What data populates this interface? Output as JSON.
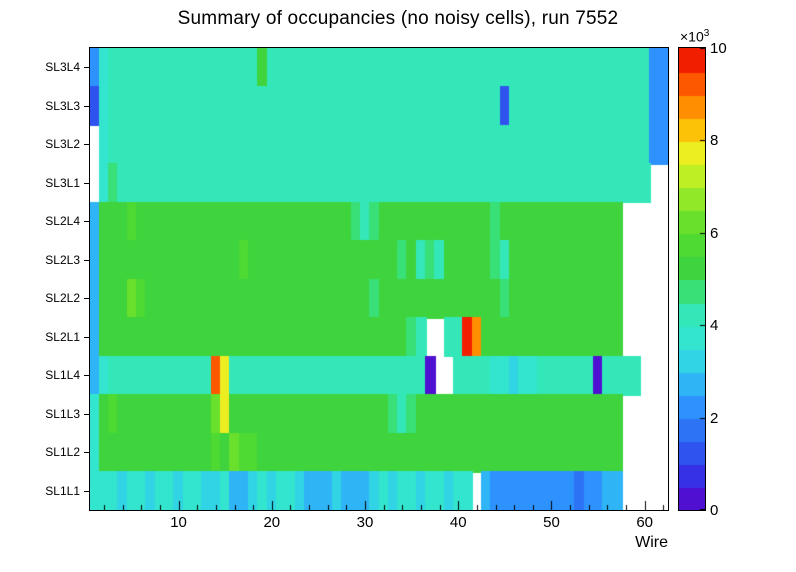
{
  "title": "Summary of occupancies (no noisy cells), run 7552",
  "chart_data": {
    "type": "heatmap",
    "title": "Summary of occupancies (no noisy cells), run 7552",
    "xlabel": "Wire",
    "x_range": [
      1,
      62
    ],
    "x_major_ticks": [
      10,
      20,
      30,
      40,
      50,
      60
    ],
    "x_minor_tick_step": 2,
    "y_categories_top_to_bottom": [
      "SL3L4",
      "SL3L3",
      "SL3L2",
      "SL3L1",
      "SL2L4",
      "SL2L3",
      "SL2L2",
      "SL2L1",
      "SL1L4",
      "SL1L3",
      "SL1L2",
      "SL1L1"
    ],
    "z_axis": {
      "min": 0,
      "max": 10,
      "ticks": [
        0,
        2,
        4,
        6,
        8,
        10
      ],
      "exp_base": "×10",
      "exp_sup": "3",
      "unit_scale": 1000
    },
    "empty_cell_color": "#ffffff",
    "rows_top_to_bottom": [
      {
        "layer": "SL3L4",
        "values": [
          2.0,
          3.6,
          4.4,
          4.4,
          4.0,
          4.0,
          4.2,
          4.0,
          4.0,
          4.2,
          4.0,
          4.0,
          4.2,
          4.0,
          4.0,
          4.4,
          4.0,
          4.0,
          5.0,
          4.2,
          4.0,
          4.0,
          4.2,
          4.0,
          4.0,
          4.0,
          4.2,
          4.0,
          4.0,
          4.4,
          4.0,
          4.0,
          4.0,
          4.2,
          4.0,
          4.0,
          4.2,
          4.0,
          4.0,
          4.0,
          4.2,
          4.0,
          4.4,
          4.2,
          4.0,
          4.0,
          4.0,
          4.2,
          4.0,
          4.0,
          4.2,
          4.0,
          4.0,
          4.4,
          4.0,
          4.2,
          4.0,
          4.0,
          4.2,
          4.0,
          2.4,
          2.2
        ]
      },
      {
        "layer": "SL3L3",
        "values": [
          1.2,
          3.8,
          4.0,
          4.2,
          4.0,
          4.0,
          4.0,
          4.2,
          4.0,
          4.0,
          4.2,
          4.0,
          4.0,
          4.0,
          4.2,
          4.0,
          4.0,
          4.2,
          4.0,
          4.0,
          4.0,
          4.2,
          4.0,
          4.0,
          4.2,
          4.0,
          4.0,
          4.0,
          4.2,
          4.0,
          4.0,
          4.2,
          4.0,
          4.0,
          4.0,
          4.2,
          4.0,
          4.0,
          4.2,
          4.0,
          4.0,
          4.0,
          4.2,
          4.0,
          1.0,
          4.0,
          4.2,
          4.0,
          4.0,
          4.2,
          4.0,
          4.0,
          4.0,
          4.2,
          4.0,
          4.0,
          4.2,
          4.0,
          4.0,
          4.0,
          2.3,
          2.2
        ]
      },
      {
        "layer": "SL3L2",
        "values": [
          null,
          3.6,
          4.0,
          4.0,
          4.2,
          4.0,
          4.0,
          4.2,
          4.0,
          4.0,
          4.0,
          4.2,
          4.0,
          4.0,
          4.2,
          4.0,
          4.0,
          4.0,
          4.2,
          4.0,
          4.0,
          4.2,
          4.0,
          4.0,
          4.0,
          4.2,
          4.0,
          4.0,
          4.2,
          4.0,
          4.0,
          4.0,
          4.2,
          4.0,
          4.0,
          4.2,
          4.0,
          4.0,
          4.0,
          4.2,
          4.0,
          4.0,
          4.2,
          4.0,
          4.0,
          4.0,
          4.2,
          4.0,
          4.0,
          4.2,
          4.0,
          4.0,
          4.0,
          4.2,
          4.0,
          4.0,
          4.2,
          4.0,
          4.0,
          4.0,
          2.4,
          2.2
        ]
      },
      {
        "layer": "SL3L1",
        "values": [
          null,
          3.8,
          4.6,
          4.2,
          4.0,
          4.2,
          4.0,
          4.0,
          4.2,
          4.0,
          4.0,
          4.2,
          4.0,
          4.0,
          4.0,
          4.2,
          4.0,
          4.0,
          4.4,
          4.0,
          4.0,
          4.2,
          4.0,
          4.0,
          4.2,
          4.0,
          4.0,
          4.0,
          4.2,
          4.0,
          4.0,
          4.2,
          4.0,
          4.0,
          4.0,
          4.2,
          4.0,
          4.0,
          4.2,
          4.0,
          4.0,
          4.0,
          4.2,
          4.0,
          4.0,
          4.2,
          4.0,
          4.0,
          4.0,
          4.2,
          4.0,
          4.0,
          4.2,
          4.0,
          4.0,
          4.0,
          4.2,
          4.0,
          4.0,
          4.0,
          null,
          null
        ]
      },
      {
        "layer": "SL2L4",
        "values": [
          2.8,
          5.0,
          5.2,
          5.0,
          5.6,
          5.4,
          5.0,
          5.2,
          5.0,
          5.0,
          5.4,
          5.0,
          5.2,
          5.0,
          5.0,
          5.2,
          5.0,
          5.4,
          5.0,
          5.0,
          5.2,
          5.0,
          5.0,
          5.4,
          5.0,
          5.2,
          5.0,
          5.0,
          4.6,
          4.4,
          4.6,
          5.0,
          5.2,
          5.0,
          5.0,
          5.2,
          5.0,
          5.0,
          5.4,
          5.0,
          5.0,
          5.2,
          5.0,
          4.6,
          5.0,
          5.2,
          5.0,
          5.0,
          5.2,
          5.0,
          5.4,
          5.0,
          5.0,
          5.2,
          5.0,
          5.0,
          5.2,
          null,
          null,
          null,
          null,
          null
        ]
      },
      {
        "layer": "SL2L3",
        "values": [
          2.8,
          5.0,
          5.2,
          5.4,
          5.0,
          5.0,
          5.2,
          5.0,
          5.4,
          5.0,
          5.0,
          5.2,
          5.0,
          5.0,
          5.2,
          5.0,
          5.6,
          5.0,
          5.0,
          5.2,
          5.0,
          5.0,
          5.2,
          5.0,
          5.0,
          5.4,
          5.0,
          5.2,
          5.0,
          5.0,
          5.2,
          5.0,
          5.0,
          4.6,
          5.0,
          4.4,
          4.6,
          4.4,
          5.0,
          5.2,
          5.0,
          5.0,
          5.2,
          4.6,
          4.4,
          5.0,
          5.2,
          5.0,
          5.0,
          5.2,
          5.0,
          5.0,
          5.4,
          5.0,
          5.0,
          5.2,
          5.0,
          null,
          null,
          null,
          null,
          null
        ]
      },
      {
        "layer": "SL2L2",
        "values": [
          2.8,
          5.0,
          5.4,
          5.0,
          6.0,
          5.6,
          5.0,
          5.2,
          5.0,
          5.0,
          5.2,
          5.0,
          5.0,
          5.4,
          5.0,
          5.2,
          5.0,
          5.0,
          5.2,
          5.0,
          5.0,
          5.4,
          5.0,
          5.0,
          5.2,
          5.0,
          5.0,
          5.2,
          5.0,
          5.0,
          4.6,
          5.0,
          5.2,
          5.0,
          5.0,
          5.2,
          5.0,
          5.0,
          5.4,
          5.0,
          5.0,
          5.2,
          5.0,
          5.0,
          4.6,
          5.0,
          5.2,
          5.0,
          5.0,
          5.2,
          5.0,
          5.4,
          5.0,
          5.0,
          5.2,
          5.0,
          5.0,
          null,
          null,
          null,
          null,
          null
        ]
      },
      {
        "layer": "SL2L1",
        "values": [
          2.8,
          5.0,
          5.2,
          5.0,
          5.0,
          5.4,
          5.0,
          5.2,
          5.0,
          5.0,
          5.2,
          5.0,
          5.0,
          5.4,
          5.2,
          5.0,
          5.0,
          5.2,
          5.0,
          5.0,
          5.2,
          5.0,
          5.4,
          5.0,
          5.0,
          5.2,
          5.0,
          5.0,
          5.2,
          5.0,
          5.0,
          5.2,
          5.0,
          5.0,
          4.6,
          4.2,
          null,
          null,
          4.0,
          4.2,
          9.8,
          8.8,
          5.0,
          5.2,
          5.0,
          5.0,
          5.2,
          5.0,
          5.0,
          5.4,
          5.0,
          5.0,
          5.2,
          5.0,
          5.0,
          5.2,
          5.0,
          null,
          null,
          null,
          null,
          null
        ]
      },
      {
        "layer": "SL1L4",
        "values": [
          2.5,
          3.8,
          4.0,
          4.2,
          4.0,
          4.0,
          4.2,
          4.0,
          4.0,
          4.2,
          4.0,
          4.0,
          4.0,
          9.3,
          7.8,
          4.2,
          4.0,
          4.0,
          4.2,
          4.0,
          4.0,
          4.0,
          4.2,
          4.0,
          4.0,
          4.2,
          4.0,
          4.0,
          4.0,
          4.2,
          4.0,
          4.0,
          4.2,
          4.0,
          4.0,
          4.0,
          0.4,
          null,
          null,
          4.0,
          4.2,
          4.0,
          4.0,
          3.6,
          3.6,
          3.4,
          3.6,
          3.6,
          4.0,
          4.2,
          4.0,
          4.0,
          4.2,
          4.0,
          0.4,
          4.0,
          4.0,
          4.0,
          4.0,
          null,
          null,
          null
        ]
      },
      {
        "layer": "SL1L3",
        "values": [
          3.5,
          5.4,
          5.8,
          5.2,
          5.0,
          5.2,
          5.0,
          5.0,
          5.2,
          5.0,
          5.0,
          5.4,
          5.0,
          6.0,
          7.5,
          5.2,
          5.0,
          5.0,
          5.2,
          5.0,
          5.0,
          5.2,
          5.0,
          5.0,
          5.4,
          5.0,
          5.0,
          5.2,
          5.0,
          5.0,
          5.2,
          5.0,
          4.6,
          4.4,
          4.6,
          5.0,
          5.2,
          5.0,
          5.0,
          5.2,
          5.0,
          5.0,
          5.4,
          5.0,
          5.0,
          5.2,
          5.0,
          5.0,
          5.2,
          5.0,
          5.0,
          5.4,
          5.0,
          5.0,
          5.2,
          5.0,
          5.0,
          null,
          null,
          null,
          null,
          null
        ]
      },
      {
        "layer": "SL1L2",
        "values": [
          3.5,
          5.0,
          5.2,
          5.0,
          5.0,
          5.4,
          5.0,
          5.2,
          5.0,
          5.0,
          5.2,
          5.0,
          5.0,
          5.6,
          5.2,
          6.0,
          5.8,
          5.6,
          5.0,
          5.2,
          5.0,
          5.0,
          5.2,
          5.0,
          5.0,
          5.4,
          5.0,
          5.0,
          5.2,
          5.0,
          5.0,
          5.2,
          5.0,
          5.0,
          5.4,
          5.0,
          5.0,
          5.2,
          5.0,
          5.0,
          5.2,
          5.0,
          5.0,
          5.2,
          5.0,
          5.0,
          5.4,
          5.0,
          5.0,
          5.2,
          5.0,
          5.0,
          5.2,
          5.0,
          5.0,
          5.4,
          5.0,
          null,
          null,
          null,
          null,
          null
        ]
      },
      {
        "layer": "SL1L1",
        "values": [
          3.5,
          3.6,
          3.6,
          3.4,
          3.6,
          3.6,
          3.4,
          3.6,
          3.6,
          3.4,
          3.6,
          3.6,
          3.4,
          3.2,
          3.6,
          2.5,
          2.5,
          3.4,
          3.6,
          3.4,
          3.6,
          3.6,
          3.4,
          2.6,
          2.6,
          2.6,
          3.4,
          2.6,
          2.6,
          2.6,
          3.4,
          3.6,
          3.4,
          3.6,
          3.6,
          3.4,
          3.6,
          3.6,
          3.4,
          3.6,
          3.6,
          null,
          2.8,
          2.4,
          2.4,
          2.4,
          2.4,
          2.0,
          2.0,
          2.0,
          2.0,
          2.0,
          1.8,
          2.2,
          2.4,
          2.6,
          2.8,
          null,
          null,
          null,
          null,
          null
        ]
      }
    ]
  },
  "palette": {
    "levels": 20,
    "stops": [
      [
        0.0,
        "#5b00c8"
      ],
      [
        0.08,
        "#3333e8"
      ],
      [
        0.16,
        "#2b6bf3"
      ],
      [
        0.24,
        "#2e9bff"
      ],
      [
        0.3,
        "#2fc8f0"
      ],
      [
        0.36,
        "#33e4d2"
      ],
      [
        0.42,
        "#33e8c0"
      ],
      [
        0.48,
        "#38df70"
      ],
      [
        0.52,
        "#3ed23e"
      ],
      [
        0.6,
        "#55dc2e"
      ],
      [
        0.66,
        "#83e62a"
      ],
      [
        0.72,
        "#b9ef25"
      ],
      [
        0.78,
        "#f2ee21"
      ],
      [
        0.84,
        "#ffb300"
      ],
      [
        0.9,
        "#ff7300"
      ],
      [
        0.95,
        "#fb3c00"
      ],
      [
        1.0,
        "#e80000"
      ]
    ],
    "frame_color": "#000000",
    "background_color": "#ffffff"
  }
}
